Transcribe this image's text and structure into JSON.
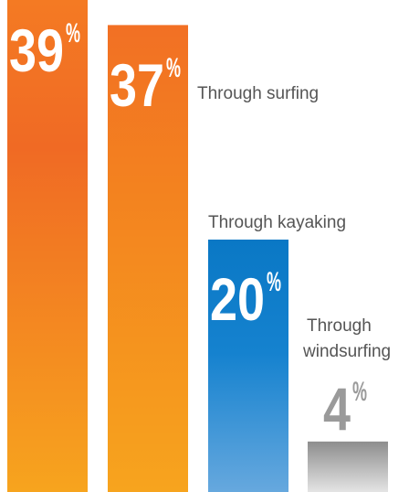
{
  "chart_data": {
    "type": "bar",
    "title": "",
    "xlabel": "",
    "ylabel": "",
    "ylim": [
      0,
      40
    ],
    "grid": false,
    "legend": "none",
    "categories": [
      "",
      "Through surfing",
      "Through kayaking",
      "Through windsurfing"
    ],
    "values": [
      39,
      37,
      20,
      4
    ],
    "value_labels": [
      "39",
      "37",
      "20",
      "4"
    ],
    "percent_sign": "%",
    "colors": {
      "orange_top": "#f26f25",
      "orange_bottom": "#f7a21e",
      "blue_top": "#0b7dc9",
      "blue_bottom": "#62a5dc",
      "gray_top": "#8f8f8f",
      "gray_bottom": "#e2e2e2",
      "label_gray": "#9a9a9a"
    }
  }
}
